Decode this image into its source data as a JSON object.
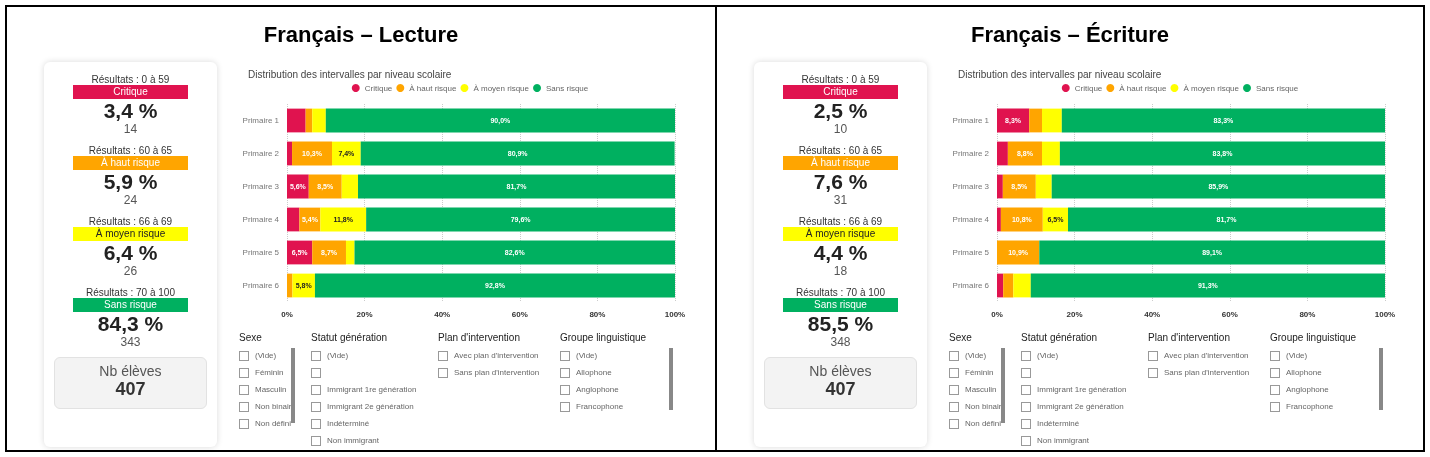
{
  "chart_data": [
    {
      "type": "other",
      "categories": [
        "Critique",
        "À haut risque",
        "À moyen risque",
        "Sans risque"
      ],
      "colors": [
        "#e0134f",
        "#ffa500",
        "#ffff00",
        "#00b060"
      ],
      "annotations": [
        "Résultats : 0 à 59",
        "Résultats : 60 à 65",
        "Résultats : 66 à 69",
        "Résultats : 70 à 100"
      ],
      "subtitle": "Nb élèves",
      "totals": [
        "407"
      ],
      "series": [
        {
          "values": [
            3.4,
            5.9,
            6.4,
            84.3
          ],
          "value_labels": [
            "3,4 %",
            "5,9 %",
            "6,4 %",
            "84,3 %"
          ]
        },
        {
          "values": [
            14,
            24,
            26,
            343
          ],
          "value_labels": [
            "14",
            "24",
            "26",
            "343"
          ]
        }
      ]
    },
    {
      "type": "bar",
      "orientation": "horizontal",
      "stacked": true,
      "title": "Français – Lecture",
      "subtitle": "Distribution des intervalles par niveau scolaire",
      "categories": [
        "Primaire 1",
        "Primaire 2",
        "Primaire 3",
        "Primaire 4",
        "Primaire 5",
        "Primaire 6"
      ],
      "xlim": [
        0,
        100
      ],
      "xticks": [
        {
          "value": 0,
          "label": "0%"
        },
        {
          "value": 20,
          "label": "20%"
        },
        {
          "value": 40,
          "label": "40%"
        },
        {
          "value": 60,
          "label": "60%"
        },
        {
          "value": 80,
          "label": "80%"
        },
        {
          "value": 100,
          "label": "100%"
        }
      ],
      "grid": "x",
      "legend": "top",
      "series": [
        {
          "name": "Critique",
          "color": "#e0134f",
          "values": [
            4.8,
            1.3,
            5.6,
            3.2,
            6.5,
            0
          ],
          "value_labels": [
            null,
            null,
            "5,6%",
            null,
            "6,5%",
            null
          ]
        },
        {
          "name": "À haut risque",
          "color": "#ffa500",
          "values": [
            1.7,
            10.3,
            8.5,
            5.4,
            8.7,
            1.4
          ],
          "value_labels": [
            null,
            "10,3%",
            "8,5%",
            "5,4%",
            "8,7%",
            null
          ]
        },
        {
          "name": "À moyen risque",
          "color": "#ffff00",
          "values": [
            3.5,
            7.4,
            4.2,
            11.8,
            2.2,
            5.8
          ],
          "value_labels": [
            null,
            "7,4%",
            null,
            "11,8%",
            null,
            "5,8%"
          ]
        },
        {
          "name": "Sans risque",
          "color": "#00b060",
          "values": [
            90.0,
            80.9,
            81.7,
            79.6,
            82.6,
            92.8
          ],
          "value_labels": [
            "90,0%",
            "80,9%",
            "81,7%",
            "79,6%",
            "82,6%",
            "92,8%"
          ]
        }
      ]
    },
    {
      "type": "other",
      "title": "Sexe",
      "annotations": [
        "(Vide)",
        "Féminin",
        "Masculin",
        "Non binair",
        "Non défini"
      ]
    },
    {
      "type": "other",
      "title": "Statut génération",
      "annotations": [
        "(Vide)",
        null,
        "Immigrant 1re génération",
        "Immigrant 2e génération",
        "Indéterminé",
        "Non immigrant"
      ]
    },
    {
      "type": "other",
      "title": "Plan d'intervention",
      "annotations": [
        "Avec plan d'intervention",
        "Sans plan d'intervention"
      ]
    },
    {
      "type": "other",
      "title": "Groupe linguistique",
      "annotations": [
        "(Vide)",
        "Allophone",
        "Anglophone",
        "Francophone"
      ]
    },
    {
      "type": "other",
      "categories": [
        "Critique",
        "À haut risque",
        "À moyen risque",
        "Sans risque"
      ],
      "colors": [
        "#e0134f",
        "#ffa500",
        "#ffff00",
        "#00b060"
      ],
      "annotations": [
        "Résultats : 0 à 59",
        "Résultats : 60 à 65",
        "Résultats : 66 à 69",
        "Résultats : 70 à 100"
      ],
      "subtitle": "Nb élèves",
      "totals": [
        "407"
      ],
      "series": [
        {
          "values": [
            2.5,
            7.6,
            4.4,
            85.5
          ],
          "value_labels": [
            "2,5 %",
            "7,6 %",
            "4,4 %",
            "85,5 %"
          ]
        },
        {
          "values": [
            10,
            31,
            18,
            348
          ],
          "value_labels": [
            "10",
            "31",
            "18",
            "348"
          ]
        }
      ]
    },
    {
      "type": "bar",
      "orientation": "horizontal",
      "stacked": true,
      "title": "Français – Écriture",
      "subtitle": "Distribution des intervalles par niveau scolaire",
      "categories": [
        "Primaire 1",
        "Primaire 2",
        "Primaire 3",
        "Primaire 4",
        "Primaire 5",
        "Primaire 6"
      ],
      "xlim": [
        0,
        100
      ],
      "xticks": [
        {
          "value": 0,
          "label": "0%"
        },
        {
          "value": 20,
          "label": "20%"
        },
        {
          "value": 40,
          "label": "40%"
        },
        {
          "value": 60,
          "label": "60%"
        },
        {
          "value": 80,
          "label": "80%"
        },
        {
          "value": 100,
          "label": "100%"
        }
      ],
      "grid": "x",
      "legend": "top",
      "series": [
        {
          "name": "Critique",
          "color": "#e0134f",
          "values": [
            8.3,
            2.8,
            1.5,
            1.0,
            0,
            1.6
          ],
          "value_labels": [
            "8,3%",
            null,
            null,
            null,
            null,
            null
          ]
        },
        {
          "name": "À haut risque",
          "color": "#ffa500",
          "values": [
            3.3,
            8.8,
            8.5,
            10.8,
            10.9,
            2.6
          ],
          "value_labels": [
            null,
            "8,8%",
            "8,5%",
            "10,8%",
            "10,9%",
            null
          ]
        },
        {
          "name": "À moyen risque",
          "color": "#ffff00",
          "values": [
            5.1,
            4.6,
            4.1,
            6.5,
            0,
            4.5
          ],
          "value_labels": [
            null,
            null,
            null,
            "6,5%",
            null,
            null
          ]
        },
        {
          "name": "Sans risque",
          "color": "#00b060",
          "values": [
            83.3,
            83.8,
            85.9,
            81.7,
            89.1,
            91.3
          ],
          "value_labels": [
            "83,3%",
            "83,8%",
            "85,9%",
            "81,7%",
            "89,1%",
            "91,3%"
          ]
        }
      ]
    },
    {
      "type": "other",
      "title": "Sexe",
      "annotations": [
        "(Vide)",
        "Féminin",
        "Masculin",
        "Non binair",
        "Non défini"
      ]
    },
    {
      "type": "other",
      "title": "Statut génération",
      "annotations": [
        "(Vide)",
        null,
        "Immigrant 1re génération",
        "Immigrant 2e génération",
        "Indéterminé",
        "Non immigrant"
      ]
    },
    {
      "type": "other",
      "title": "Plan d'intervention",
      "annotations": [
        "Avec plan d'intervention",
        "Sans plan d'intervention"
      ]
    },
    {
      "type": "other",
      "title": "Groupe linguistique",
      "annotations": [
        "(Vide)",
        "Allophone",
        "Anglophone",
        "Francophone"
      ]
    }
  ]
}
